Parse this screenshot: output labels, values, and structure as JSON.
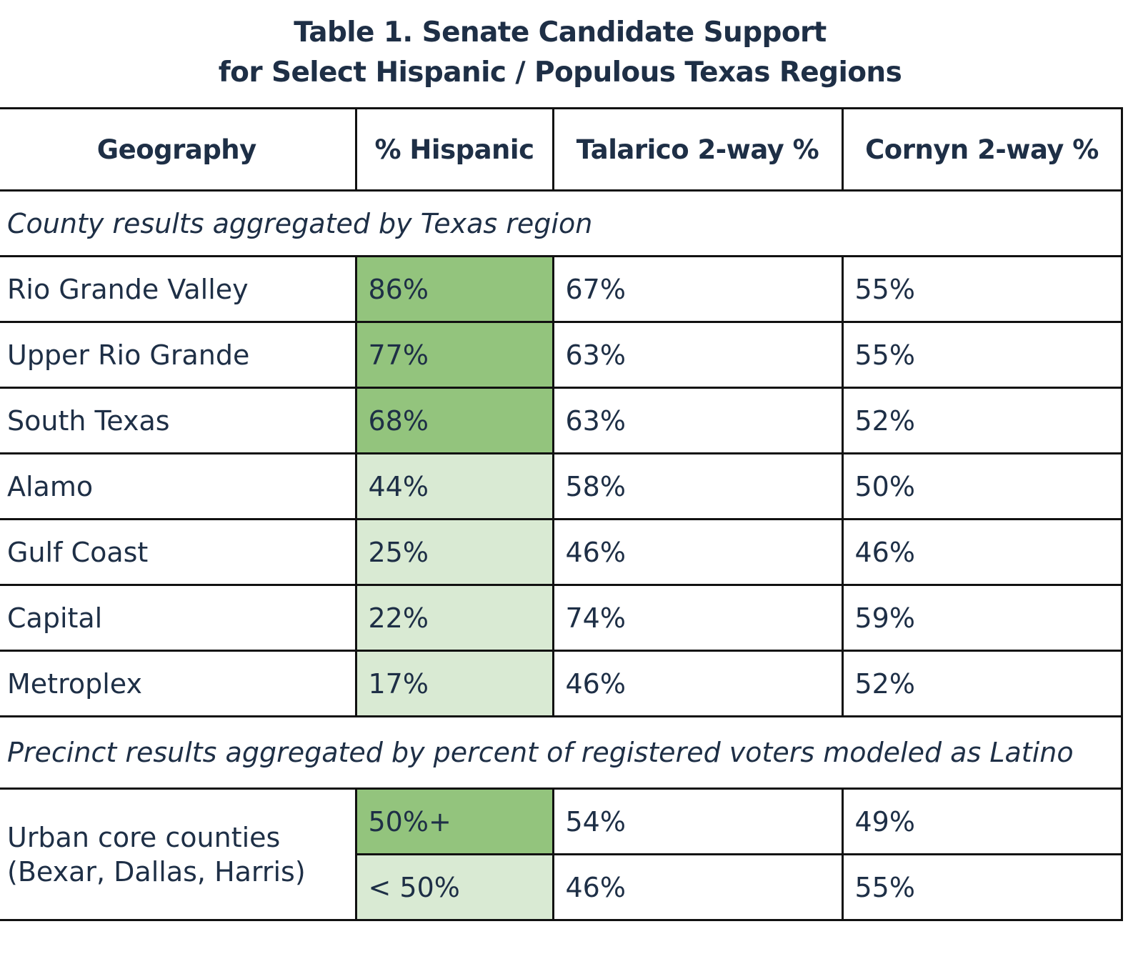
{
  "title": {
    "line1": "Table 1. Senate Candidate Support",
    "line2": "for Select Hispanic / Populous Texas Regions"
  },
  "headers": [
    "Geography",
    "% Hispanic",
    "Talarico 2-way %",
    "Cornyn 2-way %"
  ],
  "section1": {
    "label": "County results aggregated by Texas region",
    "rows": [
      {
        "geo": "Rio Grande Valley",
        "hispanic": "86%",
        "talarico": "67%",
        "cornyn": "55%",
        "shade": "dark"
      },
      {
        "geo": "Upper Rio Grande",
        "hispanic": "77%",
        "talarico": "63%",
        "cornyn": "55%",
        "shade": "dark"
      },
      {
        "geo": "South Texas",
        "hispanic": "68%",
        "talarico": "63%",
        "cornyn": "52%",
        "shade": "dark"
      },
      {
        "geo": "Alamo",
        "hispanic": "44%",
        "talarico": "58%",
        "cornyn": "50%",
        "shade": "light"
      },
      {
        "geo": "Gulf Coast",
        "hispanic": "25%",
        "talarico": "46%",
        "cornyn": "46%",
        "shade": "light"
      },
      {
        "geo": "Capital",
        "hispanic": "22%",
        "talarico": "74%",
        "cornyn": "59%",
        "shade": "light"
      },
      {
        "geo": "Metroplex",
        "hispanic": "17%",
        "talarico": "46%",
        "cornyn": "52%",
        "shade": "light"
      }
    ]
  },
  "section2": {
    "label": "Precinct results aggregated by percent of registered voters modeled as Latino",
    "group_line1": "Urban core counties",
    "group_line2": "(Bexar, Dallas, Harris)",
    "rows": [
      {
        "hispanic": "50%+",
        "talarico": "54%",
        "cornyn": "49%",
        "shade": "dark"
      },
      {
        "hispanic": "< 50%",
        "talarico": "46%",
        "cornyn": "55%",
        "shade": "light"
      }
    ]
  },
  "colors": {
    "dark_green": "#93c47d",
    "light_green": "#d9ead3",
    "text": "#1e2f46"
  }
}
